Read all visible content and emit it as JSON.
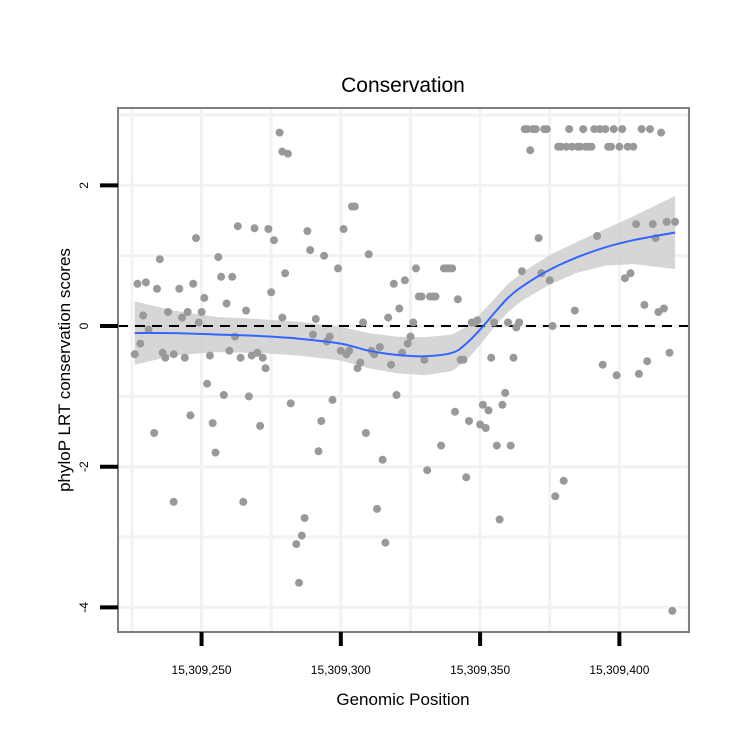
{
  "chart_data": {
    "type": "scatter",
    "title": "Conservation",
    "xlabel": "Genomic Position",
    "ylabel": "phyloP LRT conservation scores",
    "xlim": [
      15309220,
      15309425
    ],
    "ylim": [
      -4.35,
      3.1
    ],
    "x_ticks": [
      15309250,
      15309300,
      15309350,
      15309400
    ],
    "x_tick_labels": [
      "15,309,250",
      "15,309,300",
      "15,309,350",
      "15,309,400"
    ],
    "y_ticks": [
      -4,
      -2,
      0,
      2
    ],
    "y_tick_labels": [
      "-4",
      "-2",
      "0",
      "2"
    ],
    "reference_line": {
      "y": 0,
      "style": "dashed"
    },
    "colors": {
      "points": "#999999",
      "smooth_line": "#3366ff",
      "confidence_band": "#cccccc",
      "grid": "#f2f2f2",
      "frame": "#7f7f7f"
    },
    "points": [
      [
        15309226,
        -0.4
      ],
      [
        15309227,
        0.6
      ],
      [
        15309228,
        -0.25
      ],
      [
        15309229,
        0.15
      ],
      [
        15309230,
        0.62
      ],
      [
        15309231,
        -0.05
      ],
      [
        15309233,
        -1.52
      ],
      [
        15309234,
        0.53
      ],
      [
        15309235,
        0.95
      ],
      [
        15309236,
        -0.38
      ],
      [
        15309237,
        -0.45
      ],
      [
        15309238,
        0.2
      ],
      [
        15309240,
        -2.5
      ],
      [
        15309240,
        -0.4
      ],
      [
        15309242,
        0.53
      ],
      [
        15309243,
        0.12
      ],
      [
        15309244,
        -0.45
      ],
      [
        15309245,
        0.2
      ],
      [
        15309246,
        -1.27
      ],
      [
        15309247,
        0.6
      ],
      [
        15309248,
        1.25
      ],
      [
        15309249,
        0.05
      ],
      [
        15309250,
        0.2
      ],
      [
        15309251,
        0.4
      ],
      [
        15309252,
        -0.82
      ],
      [
        15309253,
        -0.42
      ],
      [
        15309254,
        -1.38
      ],
      [
        15309255,
        -1.8
      ],
      [
        15309256,
        0.98
      ],
      [
        15309257,
        0.7
      ],
      [
        15309258,
        -0.98
      ],
      [
        15309259,
        0.32
      ],
      [
        15309260,
        -0.35
      ],
      [
        15309261,
        0.7
      ],
      [
        15309262,
        -0.15
      ],
      [
        15309263,
        1.42
      ],
      [
        15309264,
        -0.45
      ],
      [
        15309265,
        -2.5
      ],
      [
        15309266,
        0.22
      ],
      [
        15309267,
        -1.0
      ],
      [
        15309268,
        -0.42
      ],
      [
        15309269,
        1.39
      ],
      [
        15309270,
        -0.38
      ],
      [
        15309271,
        -1.42
      ],
      [
        15309272,
        -0.45
      ],
      [
        15309273,
        -0.6
      ],
      [
        15309274,
        1.38
      ],
      [
        15309275,
        0.48
      ],
      [
        15309276,
        1.22
      ],
      [
        15309278,
        2.75
      ],
      [
        15309279,
        2.48
      ],
      [
        15309279,
        0.12
      ],
      [
        15309280,
        0.75
      ],
      [
        15309281,
        2.45
      ],
      [
        15309282,
        -1.1
      ],
      [
        15309284,
        -3.1
      ],
      [
        15309285,
        -3.65
      ],
      [
        15309286,
        -2.98
      ],
      [
        15309287,
        -2.73
      ],
      [
        15309288,
        1.35
      ],
      [
        15309289,
        1.08
      ],
      [
        15309290,
        -0.12
      ],
      [
        15309291,
        0.1
      ],
      [
        15309292,
        -1.78
      ],
      [
        15309293,
        -1.35
      ],
      [
        15309294,
        1.0
      ],
      [
        15309295,
        -0.22
      ],
      [
        15309296,
        -0.15
      ],
      [
        15309297,
        -1.05
      ],
      [
        15309299,
        0.82
      ],
      [
        15309300,
        -0.35
      ],
      [
        15309301,
        1.38
      ],
      [
        15309302,
        -0.4
      ],
      [
        15309303,
        -0.35
      ],
      [
        15309304,
        1.7
      ],
      [
        15309305,
        1.7
      ],
      [
        15309306,
        -0.6
      ],
      [
        15309307,
        -0.52
      ],
      [
        15309308,
        0.05
      ],
      [
        15309309,
        -1.52
      ],
      [
        15309310,
        1.02
      ],
      [
        15309311,
        -0.35
      ],
      [
        15309312,
        -0.4
      ],
      [
        15309313,
        -2.6
      ],
      [
        15309314,
        -0.3
      ],
      [
        15309315,
        -1.9
      ],
      [
        15309316,
        -3.08
      ],
      [
        15309317,
        0.12
      ],
      [
        15309318,
        -0.55
      ],
      [
        15309319,
        0.6
      ],
      [
        15309320,
        -0.98
      ],
      [
        15309321,
        0.25
      ],
      [
        15309322,
        -0.38
      ],
      [
        15309323,
        0.65
      ],
      [
        15309324,
        -0.25
      ],
      [
        15309325,
        -0.15
      ],
      [
        15309326,
        0.05
      ],
      [
        15309327,
        0.82
      ],
      [
        15309328,
        0.42
      ],
      [
        15309329,
        0.42
      ],
      [
        15309330,
        -0.48
      ],
      [
        15309331,
        -2.05
      ],
      [
        15309332,
        0.42
      ],
      [
        15309333,
        0.42
      ],
      [
        15309334,
        0.42
      ],
      [
        15309336,
        -1.7
      ],
      [
        15309337,
        0.82
      ],
      [
        15309338,
        0.82
      ],
      [
        15309339,
        0.82
      ],
      [
        15309340,
        0.82
      ],
      [
        15309341,
        -1.22
      ],
      [
        15309342,
        0.38
      ],
      [
        15309343,
        -0.48
      ],
      [
        15309344,
        -0.48
      ],
      [
        15309345,
        -2.15
      ],
      [
        15309346,
        -1.35
      ],
      [
        15309347,
        0.05
      ],
      [
        15309348,
        0.05
      ],
      [
        15309349,
        0.08
      ],
      [
        15309350,
        -1.4
      ],
      [
        15309351,
        -1.12
      ],
      [
        15309352,
        -1.45
      ],
      [
        15309353,
        -1.2
      ],
      [
        15309354,
        -0.45
      ],
      [
        15309355,
        0.05
      ],
      [
        15309356,
        -1.7
      ],
      [
        15309357,
        -2.75
      ],
      [
        15309358,
        -1.12
      ],
      [
        15309359,
        -0.95
      ],
      [
        15309360,
        0.05
      ],
      [
        15309361,
        -1.7
      ],
      [
        15309362,
        -0.45
      ],
      [
        15309363,
        -0.02
      ],
      [
        15309364,
        0.05
      ],
      [
        15309365,
        0.78
      ],
      [
        15309366,
        2.8
      ],
      [
        15309367,
        2.8
      ],
      [
        15309368,
        2.5
      ],
      [
        15309369,
        2.8
      ],
      [
        15309370,
        2.8
      ],
      [
        15309371,
        1.25
      ],
      [
        15309372,
        0.75
      ],
      [
        15309373,
        2.8
      ],
      [
        15309374,
        2.8
      ],
      [
        15309375,
        0.65
      ],
      [
        15309376,
        0.0
      ],
      [
        15309377,
        -2.42
      ],
      [
        15309378,
        2.55
      ],
      [
        15309379,
        2.55
      ],
      [
        15309380,
        -2.2
      ],
      [
        15309381,
        2.55
      ],
      [
        15309382,
        2.8
      ],
      [
        15309383,
        2.55
      ],
      [
        15309384,
        0.22
      ],
      [
        15309385,
        2.55
      ],
      [
        15309386,
        2.55
      ],
      [
        15309387,
        2.8
      ],
      [
        15309388,
        2.55
      ],
      [
        15309389,
        2.55
      ],
      [
        15309390,
        2.55
      ],
      [
        15309391,
        2.8
      ],
      [
        15309392,
        1.28
      ],
      [
        15309393,
        2.8
      ],
      [
        15309394,
        -0.55
      ],
      [
        15309395,
        2.8
      ],
      [
        15309396,
        2.55
      ],
      [
        15309397,
        2.55
      ],
      [
        15309398,
        2.8
      ],
      [
        15309399,
        -0.7
      ],
      [
        15309400,
        2.55
      ],
      [
        15309401,
        2.8
      ],
      [
        15309402,
        0.68
      ],
      [
        15309403,
        2.55
      ],
      [
        15309404,
        0.75
      ],
      [
        15309405,
        2.55
      ],
      [
        15309406,
        1.45
      ],
      [
        15309407,
        -0.68
      ],
      [
        15309408,
        2.8
      ],
      [
        15309409,
        0.3
      ],
      [
        15309410,
        -0.5
      ],
      [
        15309411,
        2.8
      ],
      [
        15309412,
        1.45
      ],
      [
        15309413,
        1.25
      ],
      [
        15309414,
        0.2
      ],
      [
        15309415,
        2.75
      ],
      [
        15309416,
        0.25
      ],
      [
        15309417,
        1.48
      ],
      [
        15309418,
        -0.38
      ],
      [
        15309419,
        -4.05
      ],
      [
        15309420,
        1.48
      ]
    ],
    "smooth": {
      "x": [
        15309226,
        15309240,
        15309255,
        15309270,
        15309285,
        15309300,
        15309310,
        15309320,
        15309330,
        15309340,
        15309345,
        15309350,
        15309355,
        15309360,
        15309365,
        15309375,
        15309385,
        15309395,
        15309405,
        15309420
      ],
      "fit": [
        -0.1,
        -0.1,
        -0.12,
        -0.14,
        -0.18,
        -0.25,
        -0.35,
        -0.41,
        -0.43,
        -0.38,
        -0.25,
        -0.05,
        0.18,
        0.4,
        0.56,
        0.8,
        0.98,
        1.12,
        1.22,
        1.33
      ],
      "band_half_width": [
        0.45,
        0.32,
        0.25,
        0.24,
        0.24,
        0.24,
        0.25,
        0.26,
        0.27,
        0.26,
        0.24,
        0.22,
        0.2,
        0.2,
        0.2,
        0.21,
        0.22,
        0.26,
        0.34,
        0.52
      ]
    }
  }
}
